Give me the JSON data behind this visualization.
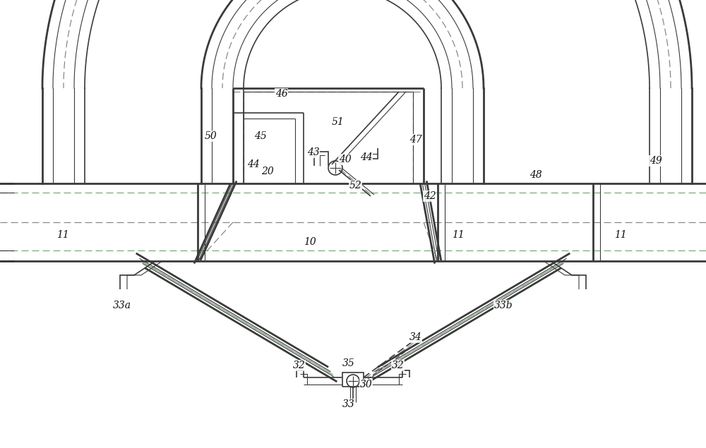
{
  "bg_color": "#ffffff",
  "lc": "#3a3a3a",
  "dc": "#888888",
  "gc": "#7aaa7a",
  "figw": 10.0,
  "figh": 6.35,
  "dpi": 100
}
